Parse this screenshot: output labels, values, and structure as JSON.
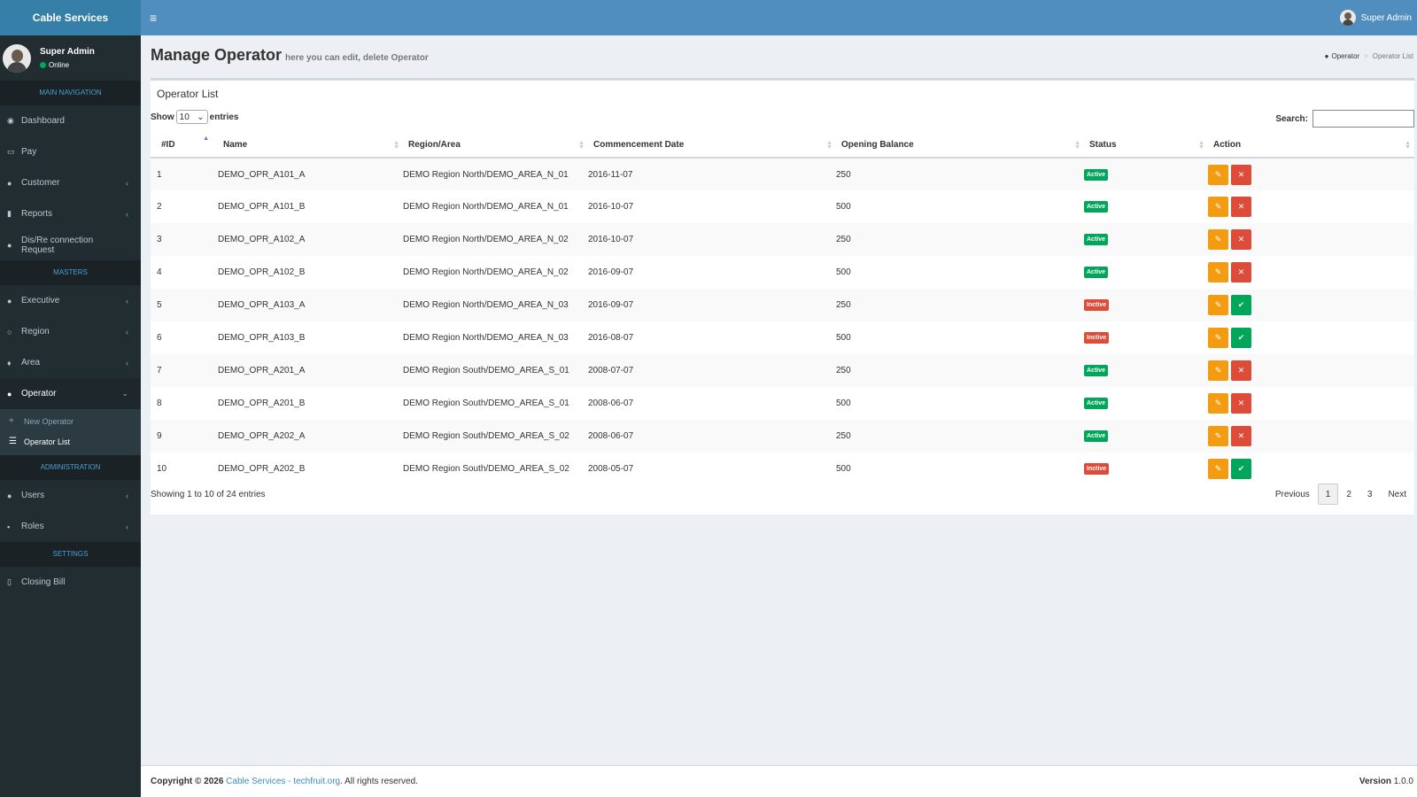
{
  "app": {
    "logo": "Cable Services"
  },
  "user": {
    "name": "Super Admin",
    "status": "Online"
  },
  "topbar": {
    "user_name": "Super Admin"
  },
  "sidebar": {
    "headers": [
      "MAIN NAVIGATION",
      "MASTERS",
      "ADMINISTRATION",
      "SETTINGS"
    ],
    "main": [
      {
        "label": "Dashboard"
      },
      {
        "label": "Pay"
      },
      {
        "label": "Customer"
      },
      {
        "label": "Reports"
      },
      {
        "label": "Dis/Re connection Request"
      }
    ],
    "masters": [
      {
        "label": "Executive"
      },
      {
        "label": "Region"
      },
      {
        "label": "Area"
      },
      {
        "label": "Operator"
      }
    ],
    "operator_sub": [
      {
        "label": "New Operator"
      },
      {
        "label": "Operator List"
      }
    ],
    "admin": [
      {
        "label": "Users"
      },
      {
        "label": "Roles"
      }
    ],
    "settings": [
      {
        "label": "Closing Bill"
      }
    ]
  },
  "page": {
    "title": "Manage Operator",
    "subtitle": "here you can edit, delete Operator"
  },
  "breadcrumb": {
    "parent": "Operator",
    "current": "Operator List"
  },
  "box": {
    "title": "Operator List"
  },
  "controls": {
    "show_label": "Show",
    "entries_value": "10",
    "entries_label": "entries",
    "search_label": "Search:"
  },
  "table": {
    "columns": [
      "#ID",
      "Name",
      "Region/Area",
      "Commencement Date",
      "Opening Balance",
      "Status",
      "Action"
    ],
    "rows": [
      {
        "id": "1",
        "name": "DEMO_OPR_A101_A",
        "region": "DEMO Region North/DEMO_AREA_N_01",
        "date": "2016-11-07",
        "balance": "250",
        "status": "Active"
      },
      {
        "id": "2",
        "name": "DEMO_OPR_A101_B",
        "region": "DEMO Region North/DEMO_AREA_N_01",
        "date": "2016-10-07",
        "balance": "500",
        "status": "Active"
      },
      {
        "id": "3",
        "name": "DEMO_OPR_A102_A",
        "region": "DEMO Region North/DEMO_AREA_N_02",
        "date": "2016-10-07",
        "balance": "250",
        "status": "Active"
      },
      {
        "id": "4",
        "name": "DEMO_OPR_A102_B",
        "region": "DEMO Region North/DEMO_AREA_N_02",
        "date": "2016-09-07",
        "balance": "500",
        "status": "Active"
      },
      {
        "id": "5",
        "name": "DEMO_OPR_A103_A",
        "region": "DEMO Region North/DEMO_AREA_N_03",
        "date": "2016-09-07",
        "balance": "250",
        "status": "Inctive"
      },
      {
        "id": "6",
        "name": "DEMO_OPR_A103_B",
        "region": "DEMO Region North/DEMO_AREA_N_03",
        "date": "2016-08-07",
        "balance": "500",
        "status": "Inctive"
      },
      {
        "id": "7",
        "name": "DEMO_OPR_A201_A",
        "region": "DEMO Region South/DEMO_AREA_S_01",
        "date": "2008-07-07",
        "balance": "250",
        "status": "Active"
      },
      {
        "id": "8",
        "name": "DEMO_OPR_A201_B",
        "region": "DEMO Region South/DEMO_AREA_S_01",
        "date": "2008-06-07",
        "balance": "500",
        "status": "Active"
      },
      {
        "id": "9",
        "name": "DEMO_OPR_A202_A",
        "region": "DEMO Region South/DEMO_AREA_S_02",
        "date": "2008-06-07",
        "balance": "250",
        "status": "Active"
      },
      {
        "id": "10",
        "name": "DEMO_OPR_A202_B",
        "region": "DEMO Region South/DEMO_AREA_S_02",
        "date": "2008-05-07",
        "balance": "500",
        "status": "Inctive"
      }
    ]
  },
  "pagination": {
    "info": "Showing 1 to 10 of 24 entries",
    "previous": "Previous",
    "pages": [
      "1",
      "2",
      "3"
    ],
    "next": "Next"
  },
  "footer": {
    "copyright": "Copyright © 2026",
    "link": "Cable Services - techfruit.org",
    "rights": ". All rights reserved.",
    "version_label": "Version",
    "version": "1.0.0"
  },
  "colors": {
    "sidebar": "#222d32",
    "topbar": "#508ec0",
    "active": "#00a65a",
    "inactive": "#dd4b39",
    "edit": "#f39c12"
  }
}
